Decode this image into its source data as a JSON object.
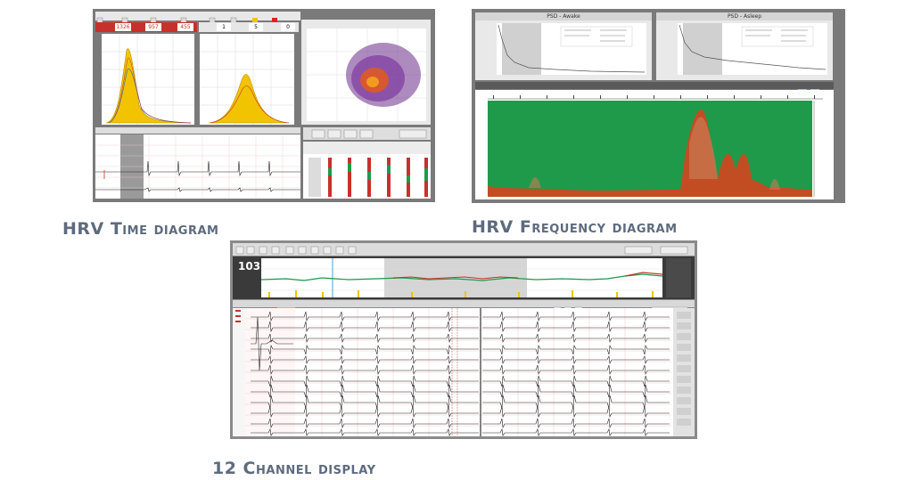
{
  "captions": {
    "time": "HRV Time diagram",
    "frequency": "HRV Frequency diagram",
    "channel": "12 Channel display"
  },
  "time_panel": {
    "stats": [
      "1326",
      "957",
      "455"
    ],
    "histo_right_stats": [
      "1",
      "5",
      "0"
    ]
  },
  "freq_panel": {
    "left_title": "PSD - Awake",
    "right_title": "PSD - Asleep"
  },
  "channel_panel": {
    "heart_rate": "103"
  },
  "colors": {
    "frame": "#7a7a7a",
    "histogram_fill": "#f2c300",
    "spectrum_green": "#1f9a4a",
    "spectrum_red": "#e0401c",
    "caption": "#5d6b7e",
    "ecg_grid": "#f0c9c9"
  }
}
